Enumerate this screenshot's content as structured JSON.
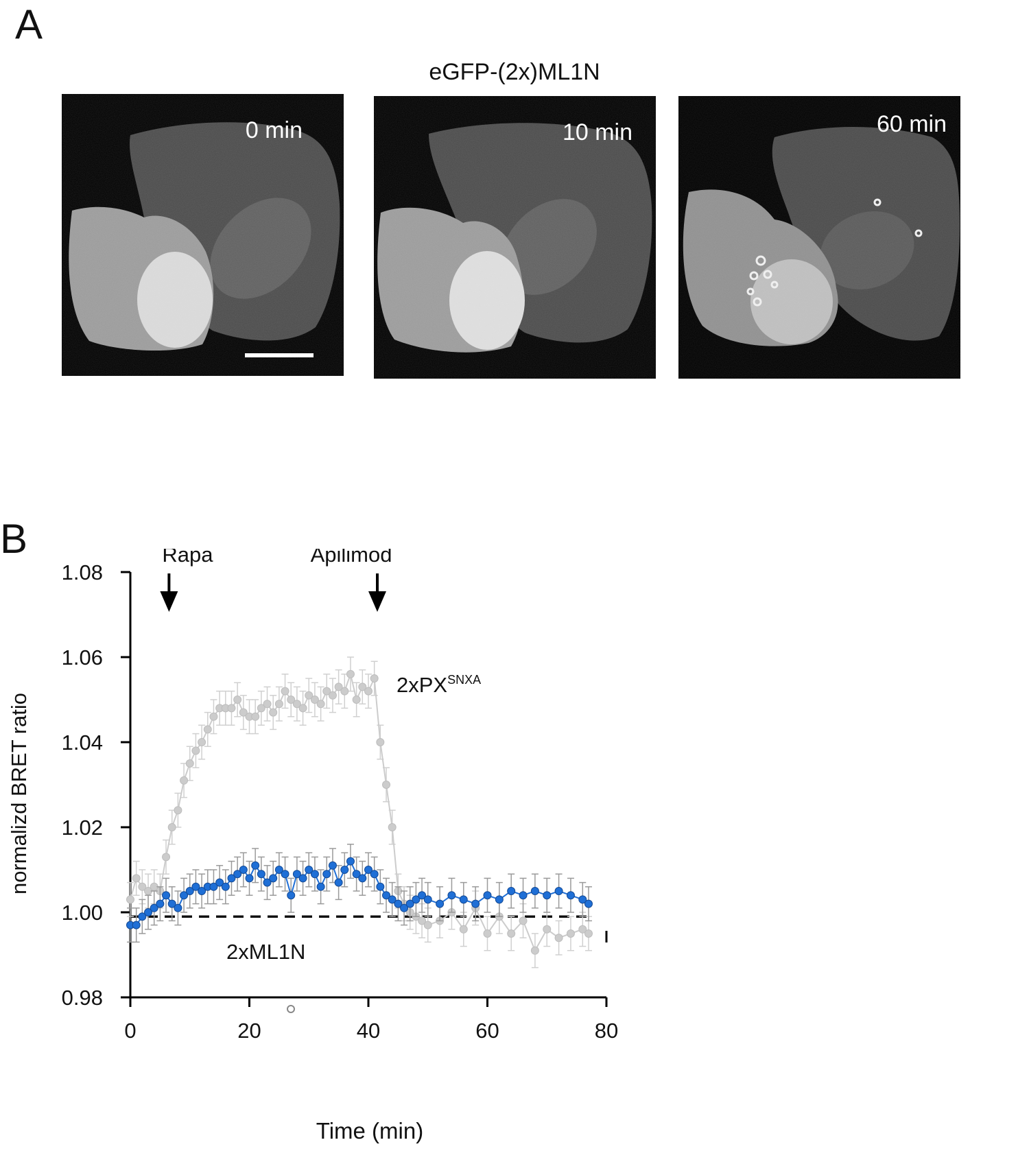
{
  "panel_a": {
    "letter": "A",
    "title": "eGFP-(2x)ML1N",
    "frames": [
      {
        "label": "0 min",
        "scale_bar": true
      },
      {
        "label": "10 min",
        "scale_bar": false
      },
      {
        "label": "60 min",
        "scale_bar": false
      }
    ]
  },
  "panel_b": {
    "letter": "B"
  },
  "chart_data": {
    "type": "line",
    "xlabel": "Time (min)",
    "ylabel": "normalizd BRET ratio",
    "xlim": [
      0,
      80
    ],
    "ylim": [
      0.98,
      1.08
    ],
    "xticks": [
      0,
      20,
      40,
      60,
      80
    ],
    "yticks": [
      "0.98",
      "1.00",
      "1.02",
      "1.04",
      "1.06",
      "1.08"
    ],
    "baseline": 0.999,
    "annotations": [
      {
        "label": "Rapa",
        "x": 6.5
      },
      {
        "label": "Apilimod",
        "x": 41.5
      }
    ],
    "series": [
      {
        "name": "2xPX",
        "name_sup": "SNXA",
        "color": "#cccccc",
        "x": [
          0,
          1,
          2,
          3,
          4,
          5,
          6,
          7,
          8,
          9,
          10,
          11,
          12,
          13,
          14,
          15,
          16,
          17,
          18,
          19,
          20,
          21,
          22,
          23,
          24,
          25,
          26,
          27,
          28,
          29,
          30,
          31,
          32,
          33,
          34,
          35,
          36,
          37,
          38,
          39,
          40,
          41,
          42,
          43,
          44,
          45,
          46,
          47,
          48,
          49,
          50,
          52,
          54,
          56,
          58,
          60,
          62,
          64,
          66,
          68,
          70,
          72,
          74,
          76,
          77
        ],
        "y": [
          1.003,
          1.008,
          1.006,
          1.005,
          1.006,
          1.005,
          1.013,
          1.02,
          1.024,
          1.031,
          1.035,
          1.038,
          1.04,
          1.043,
          1.046,
          1.048,
          1.048,
          1.048,
          1.05,
          1.047,
          1.046,
          1.046,
          1.048,
          1.049,
          1.047,
          1.049,
          1.052,
          1.05,
          1.049,
          1.048,
          1.051,
          1.05,
          1.049,
          1.052,
          1.051,
          1.053,
          1.052,
          1.056,
          1.05,
          1.053,
          1.052,
          1.055,
          1.04,
          1.03,
          1.02,
          1.005,
          1.002,
          1.0,
          0.999,
          0.998,
          0.997,
          0.998,
          1.0,
          0.996,
          1.001,
          0.995,
          0.999,
          0.995,
          0.998,
          0.991,
          0.996,
          0.994,
          0.995,
          0.996,
          0.995
        ],
        "err": 0.004
      },
      {
        "name": "2xML1N",
        "color": "#1f6fd6",
        "x": [
          0,
          1,
          2,
          3,
          4,
          5,
          6,
          7,
          8,
          9,
          10,
          11,
          12,
          13,
          14,
          15,
          16,
          17,
          18,
          19,
          20,
          21,
          22,
          23,
          24,
          25,
          26,
          27,
          28,
          29,
          30,
          31,
          32,
          33,
          34,
          35,
          36,
          37,
          38,
          39,
          40,
          41,
          42,
          43,
          44,
          45,
          46,
          47,
          48,
          49,
          50,
          52,
          54,
          56,
          58,
          60,
          62,
          64,
          66,
          68,
          70,
          72,
          74,
          76,
          77
        ],
        "y": [
          0.997,
          0.997,
          0.999,
          1.0,
          1.001,
          1.002,
          1.004,
          1.002,
          1.001,
          1.004,
          1.005,
          1.006,
          1.005,
          1.006,
          1.006,
          1.007,
          1.006,
          1.008,
          1.009,
          1.01,
          1.008,
          1.011,
          1.009,
          1.007,
          1.008,
          1.01,
          1.009,
          1.004,
          1.009,
          1.008,
          1.01,
          1.009,
          1.006,
          1.009,
          1.011,
          1.007,
          1.01,
          1.012,
          1.009,
          1.008,
          1.01,
          1.009,
          1.006,
          1.004,
          1.003,
          1.002,
          1.001,
          1.002,
          1.003,
          1.004,
          1.003,
          1.002,
          1.004,
          1.003,
          1.002,
          1.004,
          1.003,
          1.005,
          1.004,
          1.005,
          1.004,
          1.005,
          1.004,
          1.003,
          1.002
        ],
        "err": 0.004
      }
    ]
  }
}
